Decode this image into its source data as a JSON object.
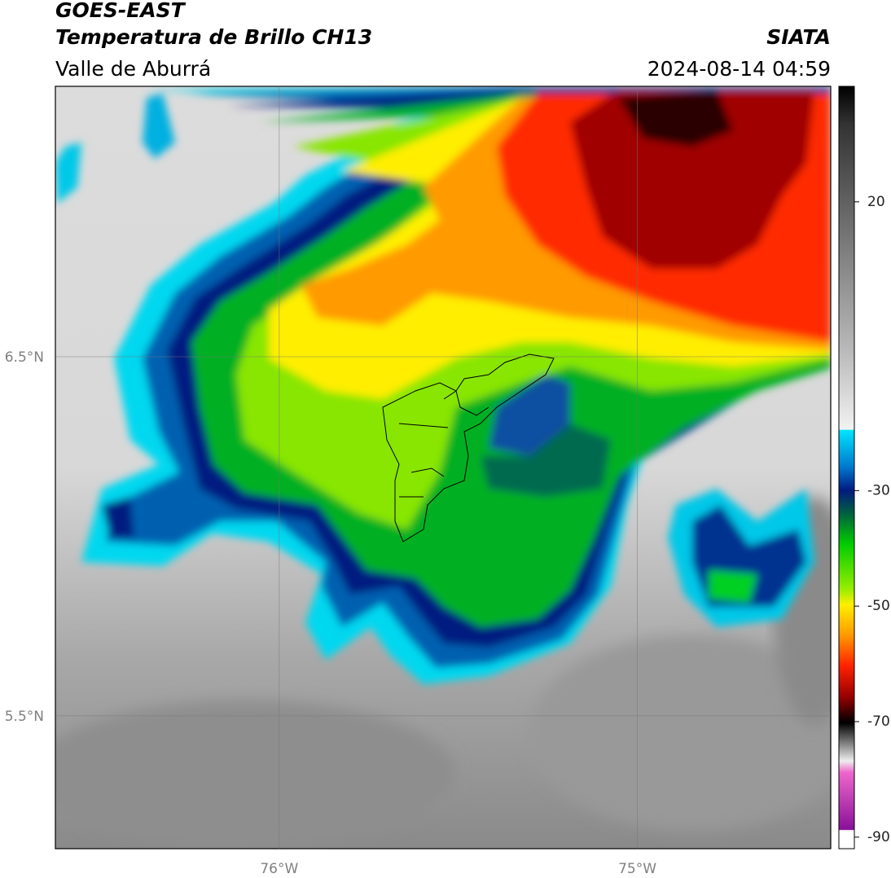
{
  "header": {
    "title": "GOES-EAST",
    "subtitle": "Temperatura de Brillo CH13",
    "region": "Valle de Aburrá",
    "agency": "SIATA",
    "timestamp": "2024-08-14 04:59"
  },
  "map": {
    "xlim": [
      -76.625,
      -74.46
    ],
    "ylim": [
      5.13,
      7.253
    ],
    "xticks": [
      {
        "value": -76,
        "label": "76°W"
      },
      {
        "value": -75,
        "label": "75°W"
      }
    ],
    "yticks": [
      {
        "value": 6.5,
        "label": "6.5°N"
      },
      {
        "value": 5.5,
        "label": "5.5°N"
      }
    ],
    "grid": true
  },
  "colorbar": {
    "lim": [
      -92,
      40
    ],
    "ticks": [
      20,
      -30,
      -50,
      -70,
      -90
    ]
  }
}
